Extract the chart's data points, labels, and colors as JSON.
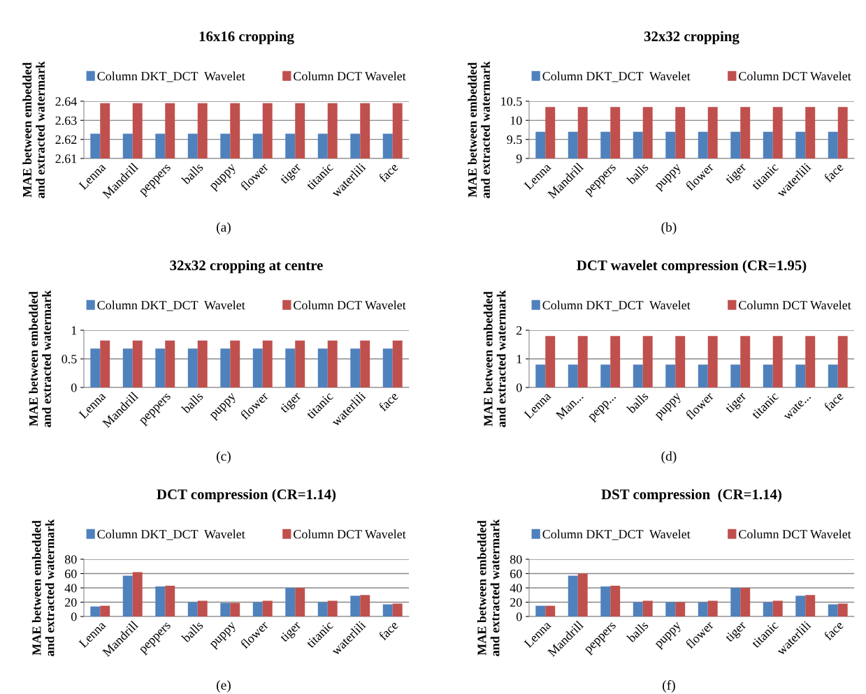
{
  "chart_data": [
    {
      "type": "bar",
      "title": "16x16 cropping",
      "ylabel": "MAE between embedded\nand extracted watermark",
      "categories": [
        "Lenna",
        "Mandrill",
        "peppers",
        "balls",
        "puppy",
        "flower",
        "tiger",
        "titanic",
        "waterlili",
        "face"
      ],
      "series": [
        {
          "name": "Column DKT_DCT  Wavelet",
          "color": "#4f81bd",
          "values": [
            2.623,
            2.623,
            2.623,
            2.623,
            2.623,
            2.623,
            2.623,
            2.623,
            2.623,
            2.623
          ]
        },
        {
          "name": "Column DCT Wavelet",
          "color": "#c0504d",
          "values": [
            2.639,
            2.639,
            2.639,
            2.639,
            2.639,
            2.639,
            2.639,
            2.639,
            2.639,
            2.639
          ]
        }
      ],
      "ylim": [
        2.61,
        2.64
      ],
      "yticks": [
        2.61,
        2.62,
        2.63,
        2.64
      ],
      "grid": "y",
      "legend": "top",
      "annotations": [
        "(a)"
      ]
    },
    {
      "type": "bar",
      "title": "32x32 cropping",
      "ylabel": "MAE between embedded\nand extracted watermark",
      "categories": [
        "Lenna",
        "Mandrill",
        "peppers",
        "balls",
        "puppy",
        "flower",
        "tiger",
        "titanic",
        "waterlili",
        "face"
      ],
      "series": [
        {
          "name": "Column DKT_DCT  Wavelet",
          "color": "#4f81bd",
          "values": [
            9.7,
            9.7,
            9.7,
            9.7,
            9.7,
            9.7,
            9.7,
            9.7,
            9.7,
            9.7
          ]
        },
        {
          "name": "Column DCT Wavelet",
          "color": "#c0504d",
          "values": [
            10.35,
            10.35,
            10.35,
            10.35,
            10.35,
            10.35,
            10.35,
            10.35,
            10.35,
            10.35
          ]
        }
      ],
      "ylim": [
        9,
        10.5
      ],
      "yticks": [
        9,
        9.5,
        10,
        10.5
      ],
      "grid": "y",
      "legend": "top",
      "annotations": [
        "(b)"
      ]
    },
    {
      "type": "bar",
      "title": "32x32 cropping at centre",
      "ylabel": "MAE between embedded\nand extracted watermark",
      "categories": [
        "Lenna",
        "Mandrill",
        "peppers",
        "balls",
        "puppy",
        "flower",
        "tiger",
        "titanic",
        "waterlili",
        "face"
      ],
      "series": [
        {
          "name": "Column DKT_DCT  Wavelet",
          "color": "#4f81bd",
          "values": [
            0.68,
            0.68,
            0.68,
            0.68,
            0.68,
            0.68,
            0.68,
            0.68,
            0.68,
            0.68
          ]
        },
        {
          "name": "Column DCT Wavelet",
          "color": "#c0504d",
          "values": [
            0.82,
            0.82,
            0.82,
            0.82,
            0.82,
            0.82,
            0.82,
            0.82,
            0.82,
            0.82
          ]
        }
      ],
      "ylim": [
        0,
        1
      ],
      "yticks": [
        0,
        0.5,
        1
      ],
      "grid": "y",
      "legend": "top",
      "annotations": [
        "(c)"
      ]
    },
    {
      "type": "bar",
      "title": "DCT wavelet compression (CR=1.95)",
      "ylabel": "MAE between embedded\nand extracted watermark",
      "categories": [
        "Lenna",
        "Man...",
        "pepp...",
        "balls",
        "puppy",
        "flower",
        "tiger",
        "titanic",
        "wate...",
        "face"
      ],
      "series": [
        {
          "name": "Column DKT_DCT  Wavelet",
          "color": "#4f81bd",
          "values": [
            0.8,
            0.8,
            0.8,
            0.8,
            0.8,
            0.8,
            0.8,
            0.8,
            0.8,
            0.8
          ]
        },
        {
          "name": "Column DCT Wavelet",
          "color": "#c0504d",
          "values": [
            1.8,
            1.8,
            1.8,
            1.8,
            1.8,
            1.8,
            1.8,
            1.8,
            1.8,
            1.8
          ]
        }
      ],
      "ylim": [
        0,
        2
      ],
      "yticks": [
        0,
        1,
        2
      ],
      "grid": "y",
      "legend": "top",
      "annotations": [
        "(d)"
      ]
    },
    {
      "type": "bar",
      "title": "DCT compression (CR=1.14)",
      "ylabel": "MAE between embedded\nand extracted watermark",
      "categories": [
        "Lenna",
        "Mandrill",
        "peppers",
        "balls",
        "puppy",
        "flower",
        "tiger",
        "titanic",
        "waterlili",
        "face"
      ],
      "series": [
        {
          "name": "Column DKT_DCT  Wavelet",
          "color": "#4f81bd",
          "values": [
            14,
            57,
            42,
            20,
            19,
            20,
            40,
            20,
            29,
            17
          ]
        },
        {
          "name": "Column DCT Wavelet",
          "color": "#c0504d",
          "values": [
            15,
            62,
            43,
            22,
            19,
            22,
            40,
            22,
            30,
            18
          ]
        }
      ],
      "ylim": [
        0,
        80
      ],
      "yticks": [
        0,
        20,
        40,
        60,
        80
      ],
      "grid": "y",
      "legend": "top",
      "annotations": [
        "(e)"
      ]
    },
    {
      "type": "bar",
      "title": "DST compression  (CR=1.14)",
      "ylabel": "MAE between embedded\nand extracted watermark",
      "categories": [
        "Lenna",
        "Mandrill",
        "peppers",
        "balls",
        "puppy",
        "flower",
        "tiger",
        "titanic",
        "waterlili",
        "face"
      ],
      "series": [
        {
          "name": "Column DKT_DCT  Wavelet",
          "color": "#4f81bd",
          "values": [
            15,
            57,
            42,
            20,
            20,
            20,
            40,
            20,
            29,
            17
          ]
        },
        {
          "name": "Column DCT Wavelet",
          "color": "#c0504d",
          "values": [
            15,
            60,
            43,
            22,
            20,
            22,
            40,
            22,
            30,
            18
          ]
        }
      ],
      "ylim": [
        0,
        80
      ],
      "yticks": [
        0,
        20,
        40,
        60,
        80
      ],
      "grid": "y",
      "legend": "top",
      "annotations": [
        "(f)"
      ]
    }
  ]
}
